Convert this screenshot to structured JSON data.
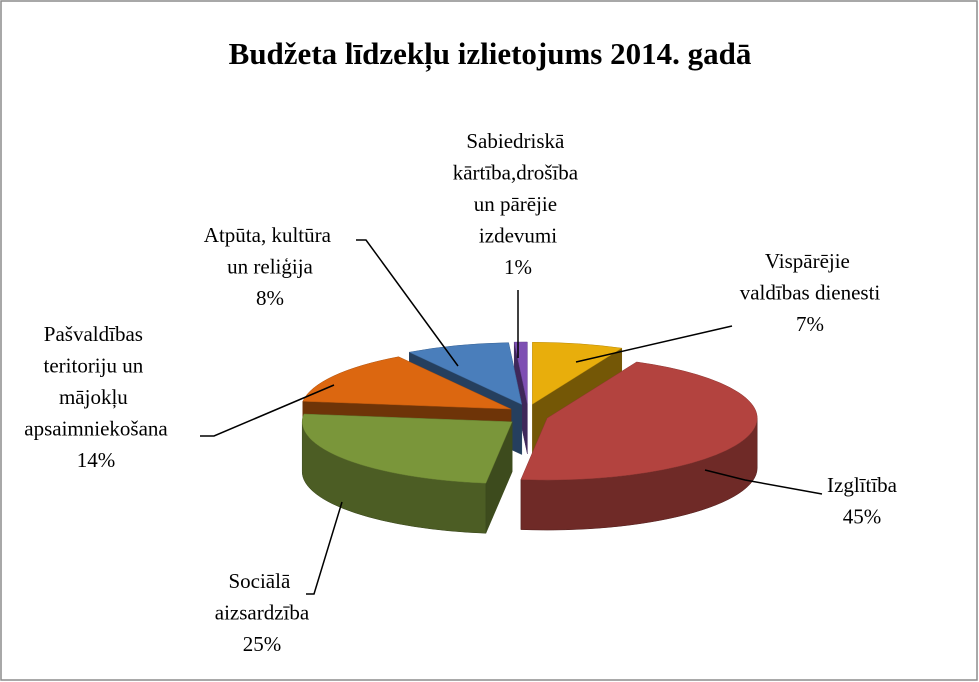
{
  "chart_data": {
    "type": "pie3d",
    "title": "Budžeta līdzekļu izlietojums 2014. gadā",
    "categories": [
      "Vispārējie valdības dienesti",
      "Izglītība",
      "Sociālā aizsardzība",
      "Pašvaldības teritoriju un mājokļu apsaimniekošana",
      "Atpūta, kultūra un reliģija",
      "Sabiedriskā kārtība,drošība un pārējie izdevumi"
    ],
    "values": [
      7,
      45,
      25,
      14,
      8,
      1
    ],
    "value_labels": [
      "7%",
      "45%",
      "25%",
      "14%",
      "8%",
      "1%"
    ],
    "colors": [
      "#e8ae0c",
      "#b3433f",
      "#7a963a",
      "#dc6710",
      "#4a7ebb",
      "#7d4fb3"
    ]
  }
}
